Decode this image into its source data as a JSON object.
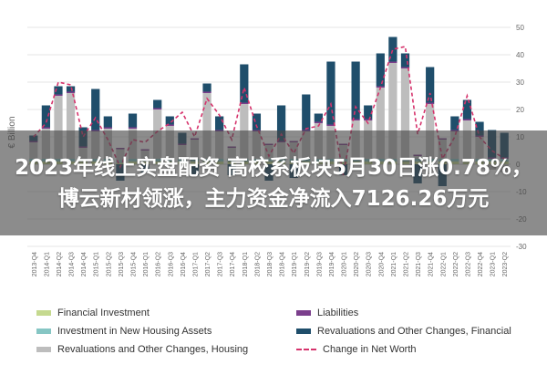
{
  "banner": {
    "title": "2023年线上实盘配资 高校系板块5月30日涨0.78%，博云新材领涨，主力资金净流入7126.26万元"
  },
  "chart_data": {
    "type": "bar",
    "ylabel": "€ Billion",
    "ylim": [
      -30,
      50
    ],
    "yticks": [
      -30,
      -20,
      -10,
      0,
      10,
      20,
      30,
      40,
      50
    ],
    "grid": true,
    "categories": [
      "2013-Q4",
      "2014-Q1",
      "2014-Q2",
      "2014-Q3",
      "2014-Q4",
      "2015-Q1",
      "2015-Q2",
      "2015-Q3",
      "2015-Q4",
      "2016-Q1",
      "2016-Q2",
      "2016-Q3",
      "2016-Q4",
      "2017-Q1",
      "2017-Q2",
      "2017-Q3",
      "2017-Q4",
      "2018-Q1",
      "2018-Q2",
      "2018-Q3",
      "2018-Q4",
      "2019-Q1",
      "2019-Q2",
      "2019-Q3",
      "2019-Q4",
      "2020-Q1",
      "2020-Q2",
      "2020-Q3",
      "2020-Q4",
      "2021-Q1",
      "2021-Q2",
      "2021-Q3",
      "2021-Q4",
      "2022-Q1",
      "2022-Q2",
      "2022-Q3",
      "2022-Q4",
      "2023-Q1",
      "2023-Q2"
    ],
    "series": [
      {
        "name": "Financial Investment",
        "color": "#c5d98f",
        "values": [
          1,
          1,
          1,
          1,
          1,
          1,
          1,
          0.5,
          1,
          1,
          1,
          1,
          1,
          1,
          1,
          1,
          1,
          1,
          1,
          1,
          1,
          1,
          1,
          1,
          1,
          1,
          1,
          1,
          1,
          1,
          1,
          1,
          1,
          1,
          1,
          1,
          1,
          1,
          1
        ]
      },
      {
        "name": "Investment in New Housing Assets",
        "color": "#86c6c4",
        "values": [
          1,
          1,
          1,
          1,
          1,
          1,
          1,
          1,
          1,
          1,
          1,
          1,
          1,
          1,
          1,
          1,
          1,
          1,
          1,
          1,
          1,
          1,
          1,
          1,
          1,
          1,
          1,
          1,
          1,
          1,
          1,
          1,
          1,
          1,
          1,
          1,
          1,
          1,
          1
        ]
      },
      {
        "name": "Revaluations and Other Changes, Housing",
        "color": "#bdbdbd",
        "values": [
          6,
          11,
          23,
          24,
          4,
          10,
          11,
          4,
          11,
          3,
          18,
          12,
          5,
          7,
          24,
          10,
          4,
          20,
          10,
          5,
          6,
          6,
          10,
          13,
          12,
          5,
          14,
          14,
          26,
          35,
          33,
          1,
          20,
          7,
          10,
          14,
          8,
          -2,
          -3
        ]
      },
      {
        "name": "Liabilities",
        "color": "#7b3f8c",
        "values": [
          0.5,
          0.5,
          0.5,
          0.5,
          0.5,
          0.5,
          0.5,
          0.5,
          0.5,
          0.5,
          0.5,
          0.5,
          0.5,
          0.5,
          0.5,
          0.5,
          0.5,
          0.5,
          0.5,
          0.5,
          0.5,
          0.5,
          0.5,
          0.5,
          0.5,
          0.5,
          0.5,
          0.5,
          0.5,
          0.5,
          0.5,
          0.5,
          0.5,
          0.5,
          0.5,
          0.5,
          0.5,
          0.5,
          0.5
        ]
      },
      {
        "name": "Revaluations and Other Changes, Financial",
        "color": "#1f4e6b",
        "values": [
          2,
          8,
          3,
          2,
          7,
          15,
          4,
          -6,
          5,
          -3,
          3,
          3,
          4,
          -4,
          3,
          5,
          -4,
          14,
          6,
          -6,
          13,
          -5,
          13,
          3,
          23,
          -4,
          21,
          5,
          12,
          9,
          5,
          -7,
          13,
          -8,
          5,
          7,
          5,
          10,
          9
        ]
      }
    ],
    "net_worth": {
      "name": "Change in Net Worth",
      "color": "#d6336c",
      "values": [
        10,
        15,
        30,
        29,
        10,
        17,
        9,
        -1,
        9,
        8,
        12,
        15,
        19,
        10,
        24,
        18,
        9,
        28,
        14,
        3,
        11,
        4,
        13,
        14,
        22,
        -4,
        21,
        15,
        28,
        42,
        43,
        11,
        26,
        2,
        10,
        25,
        10,
        5,
        2
      ]
    }
  },
  "legend": [
    {
      "label": "Financial Investment",
      "kind": "swatch",
      "color": "#c5d98f"
    },
    {
      "label": "Liabilities",
      "kind": "swatch",
      "color": "#7b3f8c"
    },
    {
      "label": "Investment in New Housing Assets",
      "kind": "swatch",
      "color": "#86c6c4"
    },
    {
      "label": "Revaluations and Other Changes, Financial",
      "kind": "swatch",
      "color": "#1f4e6b"
    },
    {
      "label": "Revaluations and Other Changes, Housing",
      "kind": "swatch",
      "color": "#bdbdbd"
    },
    {
      "label": "Change in Net Worth",
      "kind": "dash",
      "color": "#d6336c"
    }
  ]
}
